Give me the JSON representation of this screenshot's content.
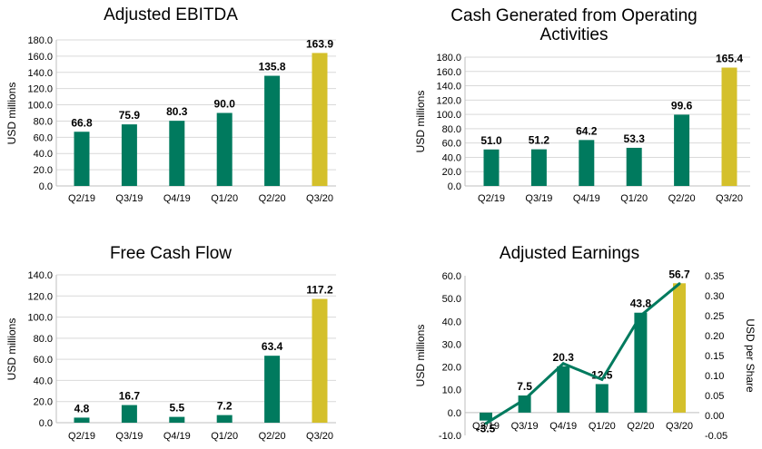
{
  "colors": {
    "bar": "#007a5e",
    "highlight": "#d4c02b",
    "line": "#007a5e"
  },
  "chart_data": [
    {
      "type": "bar",
      "title": "Adjusted EBITDA",
      "ylabel": "USD millions",
      "categories": [
        "Q2/19",
        "Q3/19",
        "Q4/19",
        "Q1/20",
        "Q2/20",
        "Q3/20"
      ],
      "values": [
        66.8,
        75.9,
        80.3,
        90.0,
        135.8,
        163.9
      ],
      "value_labels": [
        "66.8",
        "75.9",
        "80.3",
        "90.0",
        "135.8",
        "163.9"
      ],
      "ylim": [
        0,
        180
      ],
      "yticks": [
        "0.0",
        "20.0",
        "40.0",
        "60.0",
        "80.0",
        "100.0",
        "120.0",
        "140.0",
        "160.0",
        "180.0"
      ],
      "highlight_index": 5,
      "grid": true
    },
    {
      "type": "bar",
      "title": "Cash Generated from Operating Activities",
      "title_lines": [
        "Cash Generated from Operating",
        "Activities"
      ],
      "ylabel": "USD millions",
      "categories": [
        "Q2/19",
        "Q3/19",
        "Q4/19",
        "Q1/20",
        "Q2/20",
        "Q3/20"
      ],
      "values": [
        51.0,
        51.2,
        64.2,
        53.3,
        99.6,
        165.4
      ],
      "value_labels": [
        "51.0",
        "51.2",
        "64.2",
        "53.3",
        "99.6",
        "165.4"
      ],
      "ylim": [
        0,
        180
      ],
      "yticks": [
        "0.0",
        "20.0",
        "40.0",
        "60.0",
        "80.0",
        "100.0",
        "120.0",
        "140.0",
        "160.0",
        "180.0"
      ],
      "highlight_index": 5,
      "grid": true
    },
    {
      "type": "bar",
      "title": "Free Cash Flow",
      "ylabel": "USD millions",
      "categories": [
        "Q2/19",
        "Q3/19",
        "Q4/19",
        "Q1/20",
        "Q2/20",
        "Q3/20"
      ],
      "values": [
        4.8,
        16.7,
        5.5,
        7.2,
        63.4,
        117.2
      ],
      "value_labels": [
        "4.8",
        "16.7",
        "5.5",
        "7.2",
        "63.4",
        "117.2"
      ],
      "ylim": [
        0,
        140
      ],
      "yticks": [
        "0.0",
        "20.0",
        "40.0",
        "60.0",
        "80.0",
        "100.0",
        "120.0",
        "140.0"
      ],
      "highlight_index": 5,
      "grid": true
    },
    {
      "type": "bar",
      "title": "Adjusted Earnings",
      "ylabel": "USD millions",
      "y2label": "USD per Share",
      "categories": [
        "Q2/19",
        "Q3/19",
        "Q4/19",
        "Q1/20",
        "Q2/20",
        "Q3/20"
      ],
      "values": [
        -3.5,
        7.5,
        20.3,
        12.5,
        43.8,
        56.7
      ],
      "value_labels": [
        "-3.5",
        "7.5",
        "20.3",
        "12.5",
        "43.8",
        "56.7"
      ],
      "ylim": [
        -10,
        60
      ],
      "yticks": [
        "-10.0",
        "0.0",
        "10.0",
        "20.0",
        "30.0",
        "40.0",
        "50.0",
        "60.0"
      ],
      "y2lim": [
        -0.05,
        0.35
      ],
      "y2ticks": [
        "-0.05",
        "0.00",
        "0.05",
        "0.10",
        "0.15",
        "0.20",
        "0.25",
        "0.30",
        "0.35"
      ],
      "line_values": [
        -0.02,
        0.04,
        0.13,
        0.09,
        0.25,
        0.33
      ],
      "highlight_index": 5,
      "grid": false
    }
  ]
}
